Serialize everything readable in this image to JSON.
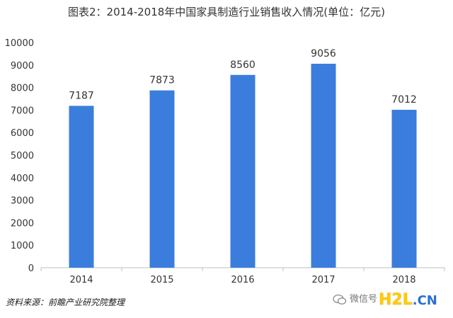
{
  "title": "图表2：2014-2018年中国家具制造行业销售收入情况(单位：亿元)",
  "source": "资料来源：前瞻产业研究院整理",
  "watermark": {
    "wechat_text": "微信号",
    "brand_h2l": "H2L",
    "brand_dot_cn": ".CN"
  },
  "colors": {
    "bar": "#3b7ddd",
    "axis": "#bfbfbf",
    "text": "#333333"
  },
  "chart_data": {
    "type": "bar",
    "title": "图表2：2014-2018年中国家具制造行业销售收入情况(单位：亿元)",
    "categories": [
      "2014",
      "2015",
      "2016",
      "2017",
      "2018"
    ],
    "values": [
      7187,
      7873,
      8560,
      9056,
      7012
    ],
    "ylim": [
      0,
      10000
    ],
    "yticks": [
      "0",
      "1000",
      "2000",
      "3000",
      "4000",
      "5000",
      "6000",
      "7000",
      "8000",
      "9000",
      "10000"
    ],
    "data_labels": [
      "7187",
      "7873",
      "8560",
      "9056",
      "7012"
    ],
    "grid": false,
    "legend": "none"
  }
}
